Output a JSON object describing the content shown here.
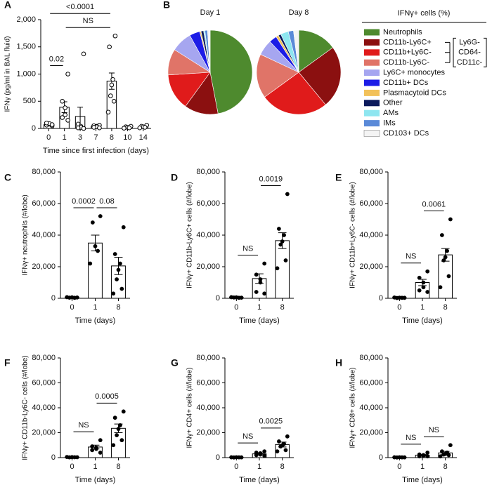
{
  "chart_data": [
    {
      "type": "bar",
      "panel": "A",
      "ylabel": "IFNγ (pg/ml in BAL fluid)",
      "xlabel": "Time since first infection (days)",
      "categories": [
        "0",
        "1",
        "3",
        "7",
        "8",
        "10",
        "14"
      ],
      "values": [
        70,
        390,
        220,
        40,
        870,
        20,
        30
      ],
      "errors": [
        15,
        100,
        170,
        15,
        150,
        10,
        10
      ],
      "points": [
        [
          50,
          60,
          80,
          90,
          100,
          70
        ],
        [
          1000,
          500,
          380,
          250,
          200,
          150
        ],
        [
          1370,
          80,
          40,
          20,
          10,
          0
        ],
        [
          60,
          50,
          40,
          30,
          20,
          10
        ],
        [
          1700,
          1500,
          900,
          800,
          600,
          500,
          300
        ],
        [
          40,
          30,
          20,
          10,
          5
        ],
        [
          60,
          40,
          30,
          20,
          10
        ]
      ],
      "point_style": "open",
      "ylim": [
        0,
        2000
      ],
      "yticks": [
        0,
        500,
        {
          "value": 1000,
          "label": "1,000"
        },
        {
          "value": 1500,
          "label": "1,500"
        },
        {
          "value": 2000,
          "label": "2,000"
        }
      ],
      "comparisons": [
        {
          "label": "0.02",
          "between": [
            "0",
            "1"
          ]
        },
        {
          "label": "NS",
          "between": [
            "1",
            "8"
          ]
        },
        {
          "label": "<0.0001",
          "between": [
            "0",
            "8"
          ]
        }
      ]
    },
    {
      "type": "pie",
      "panel": "B",
      "legend_title": "IFNγ+ cells (%)",
      "group_label": [
        "Ly6G-",
        "CD64-",
        "CD11c-"
      ],
      "categories": [
        "Neutrophils",
        "CD11b-Ly6C+",
        "CD11b+Ly6C-",
        "CD11b-Ly6C-",
        "Ly6C+ monocytes",
        "CD11b+ DCs",
        "Plasmacytoid DCs",
        "Other",
        "AMs",
        "IMs",
        "CD103+ DCs"
      ],
      "colors": [
        "#4e8a2e",
        "#8b1010",
        "#e01b1b",
        "#e07468",
        "#a6a6f0",
        "#1c1ce6",
        "#f2c15a",
        "#0b1a5c",
        "#8ee6f0",
        "#5a8ad8",
        "#f4f4f4"
      ],
      "series": [
        {
          "name": "Day 1",
          "values": [
            47,
            13,
            14,
            10,
            8,
            4,
            0.5,
            1,
            0.5,
            1,
            1
          ]
        },
        {
          "name": "Day 8",
          "values": [
            15,
            24,
            26,
            17,
            6,
            3,
            1,
            1,
            3,
            2,
            2
          ]
        }
      ]
    },
    {
      "type": "bar",
      "panel": "C",
      "ylabel": "IFNγ+ neutrophils (#/lobe)",
      "xlabel": "Time (days)",
      "categories": [
        "0",
        "1",
        "8"
      ],
      "values": [
        500,
        35000,
        20500
      ],
      "errors": [
        200,
        5000,
        5500
      ],
      "points": [
        [
          500,
          400,
          600,
          300,
          700
        ],
        [
          52000,
          48000,
          33000,
          30000,
          22000
        ],
        [
          45000,
          28000,
          22000,
          18000,
          12000,
          6000,
          3000
        ]
      ],
      "point_style": "filled",
      "ylim": [
        0,
        80000
      ],
      "yticks": [
        0,
        {
          "value": 20000,
          "label": "20,000"
        },
        {
          "value": 40000,
          "label": "40,000"
        },
        {
          "value": 60000,
          "label": "60,000"
        },
        {
          "value": 80000,
          "label": "80,000"
        }
      ],
      "comparisons": [
        {
          "label": "0.0002",
          "between": [
            "0",
            "1"
          ]
        },
        {
          "label": "0.08",
          "between": [
            "1",
            "8"
          ]
        }
      ]
    },
    {
      "type": "bar",
      "panel": "D",
      "ylabel": "IFNγ+ CD11b-Ly6C+ cells (#/lobe)",
      "xlabel": "Time (days)",
      "categories": [
        "0",
        "1",
        "8"
      ],
      "values": [
        500,
        12500,
        36500
      ],
      "errors": [
        200,
        3000,
        5000
      ],
      "points": [
        [
          400,
          500,
          600,
          300,
          700
        ],
        [
          22000,
          15000,
          12000,
          10000,
          4000,
          3000
        ],
        [
          66000,
          44000,
          40000,
          36000,
          34000,
          24000,
          19000
        ]
      ],
      "point_style": "filled",
      "ylim": [
        0,
        80000
      ],
      "yticks": [
        0,
        {
          "value": 20000,
          "label": "20,000"
        },
        {
          "value": 40000,
          "label": "40,000"
        },
        {
          "value": 60000,
          "label": "60,000"
        },
        {
          "value": 80000,
          "label": "80,000"
        }
      ],
      "comparisons": [
        {
          "label": "NS",
          "between": [
            "0",
            "1"
          ]
        },
        {
          "label": "0.0019",
          "between": [
            "1",
            "8"
          ]
        }
      ]
    },
    {
      "type": "bar",
      "panel": "E",
      "ylabel": "IFNγ+ CD11b+Ly6C- cells (#/lobe)",
      "xlabel": "Time (days)",
      "categories": [
        "0",
        "1",
        "8"
      ],
      "values": [
        300,
        10000,
        27500
      ],
      "errors": [
        200,
        2000,
        4000
      ],
      "points": [
        [
          300,
          200,
          400,
          300,
          500
        ],
        [
          17000,
          13000,
          10000,
          7000,
          5000,
          4000
        ],
        [
          50000,
          40000,
          30000,
          26000,
          24000,
          14000,
          7000
        ]
      ],
      "point_style": "filled",
      "ylim": [
        0,
        80000
      ],
      "yticks": [
        0,
        {
          "value": 20000,
          "label": "20,000"
        },
        {
          "value": 40000,
          "label": "40,000"
        },
        {
          "value": 60000,
          "label": "60,000"
        },
        {
          "value": 80000,
          "label": "80,000"
        }
      ],
      "comparisons": [
        {
          "label": "NS",
          "between": [
            "0",
            "1"
          ]
        },
        {
          "label": "0.0061",
          "between": [
            "1",
            "8"
          ]
        }
      ]
    },
    {
      "type": "bar",
      "panel": "F",
      "ylabel": "IFNγ+ CD11b-Ly6C- cells (#/lobe)",
      "xlabel": "Time (days)",
      "categories": [
        "0",
        "1",
        "8"
      ],
      "values": [
        300,
        8500,
        23500
      ],
      "errors": [
        200,
        1500,
        3500
      ],
      "points": [
        [
          300,
          200,
          400,
          300,
          500
        ],
        [
          14000,
          9000,
          8000,
          7000,
          6000,
          4000
        ],
        [
          37000,
          32000,
          26000,
          23000,
          18000,
          14000,
          10000
        ]
      ],
      "point_style": "filled",
      "ylim": [
        0,
        80000
      ],
      "yticks": [
        0,
        {
          "value": 20000,
          "label": "20,000"
        },
        {
          "value": 40000,
          "label": "40,000"
        },
        {
          "value": 60000,
          "label": "60,000"
        },
        {
          "value": 80000,
          "label": "80,000"
        }
      ],
      "comparisons": [
        {
          "label": "NS",
          "between": [
            "0",
            "1"
          ]
        },
        {
          "label": "0.0005",
          "between": [
            "1",
            "8"
          ]
        }
      ]
    },
    {
      "type": "bar",
      "panel": "G",
      "ylabel": "IFNγ+ CD4+ cells (#/lobe)",
      "xlabel": "Time (days)",
      "categories": [
        "0",
        "1",
        "8"
      ],
      "values": [
        200,
        3000,
        10500
      ],
      "errors": [
        100,
        700,
        2000
      ],
      "points": [
        [
          200,
          100,
          300,
          200,
          250
        ],
        [
          5000,
          4000,
          3500,
          2500,
          2000,
          1500
        ],
        [
          17000,
          13000,
          11000,
          10000,
          9000,
          6000,
          5000
        ]
      ],
      "point_style": "filled",
      "ylim": [
        0,
        80000
      ],
      "yticks": [
        0,
        {
          "value": 20000,
          "label": "20,000"
        },
        {
          "value": 40000,
          "label": "40,000"
        },
        {
          "value": 60000,
          "label": "60,000"
        },
        {
          "value": 80000,
          "label": "80,000"
        }
      ],
      "comparisons": [
        {
          "label": "NS",
          "between": [
            "0",
            "1"
          ]
        },
        {
          "label": "0.0025",
          "between": [
            "1",
            "8"
          ]
        }
      ]
    },
    {
      "type": "bar",
      "panel": "H",
      "ylabel": "IFNγ+ CD8+ cells (#/lobe)",
      "xlabel": "Time (days)",
      "categories": [
        "0",
        "1",
        "8"
      ],
      "values": [
        200,
        2000,
        3800
      ],
      "errors": [
        100,
        500,
        1200
      ],
      "points": [
        [
          200,
          100,
          300,
          200,
          250
        ],
        [
          4000,
          2500,
          2000,
          1500,
          1000,
          1000
        ],
        [
          10000,
          5000,
          4000,
          3000,
          2500,
          2000,
          1000
        ]
      ],
      "point_style": "filled",
      "ylim": [
        0,
        80000
      ],
      "yticks": [
        0,
        {
          "value": 20000,
          "label": "20,000"
        },
        {
          "value": 40000,
          "label": "40,000"
        },
        {
          "value": 60000,
          "label": "60,000"
        },
        {
          "value": 80000,
          "label": "80,000"
        }
      ],
      "comparisons": [
        {
          "label": "NS",
          "between": [
            "0",
            "1"
          ]
        },
        {
          "label": "NS",
          "between": [
            "1",
            "8"
          ]
        }
      ]
    }
  ]
}
